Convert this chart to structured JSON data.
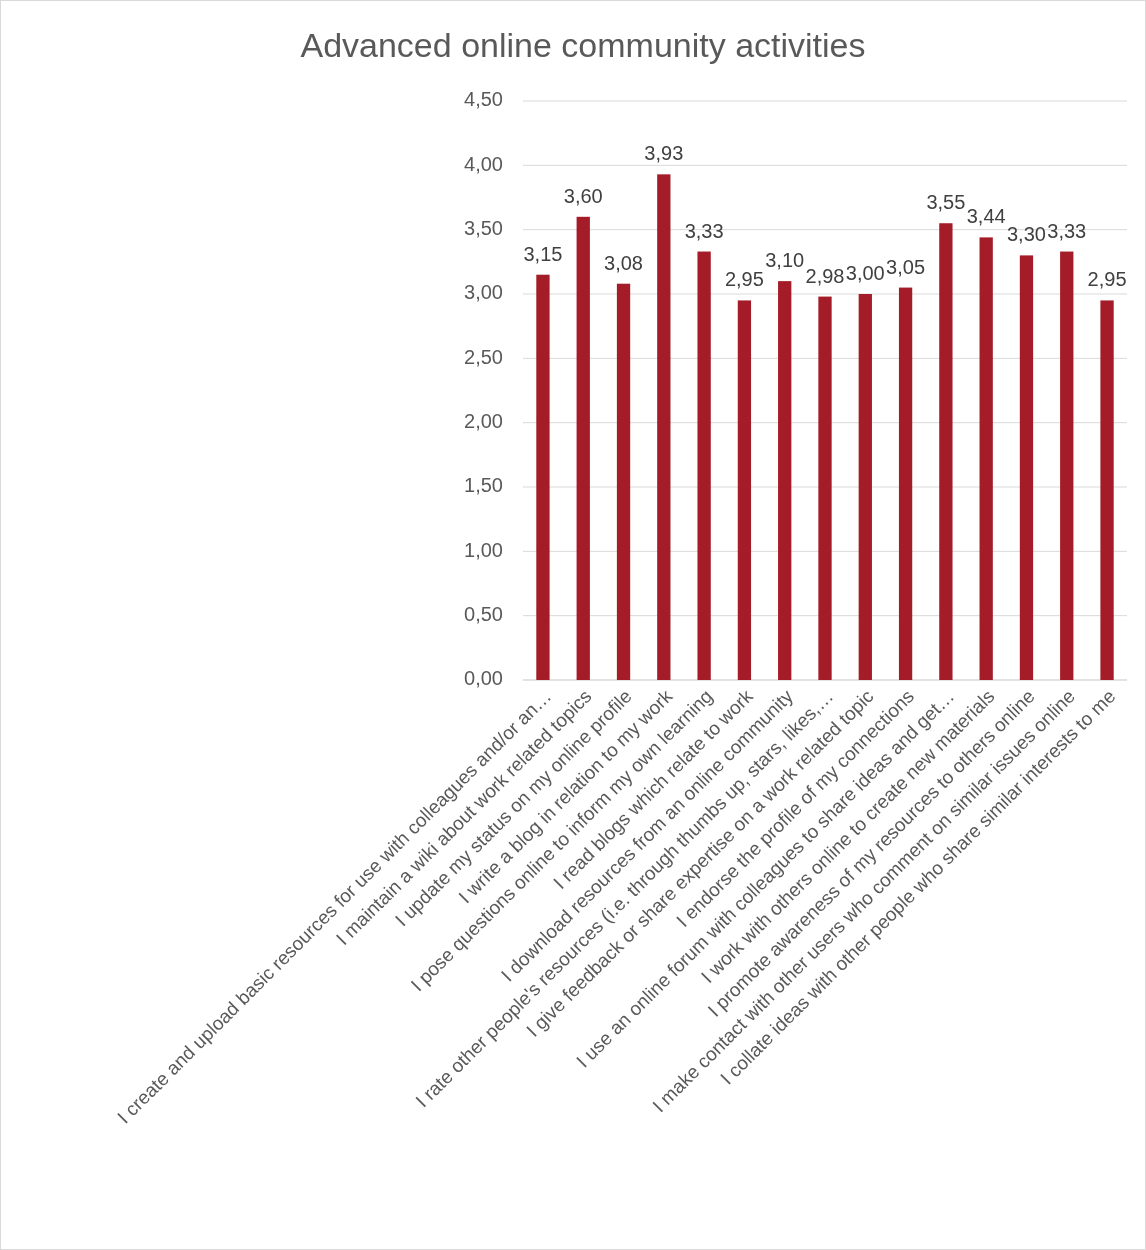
{
  "chart_data": {
    "type": "bar",
    "title": "Advanced online community activities",
    "categories": [
      "I create and upload basic resources for use with colleagues and/or an…",
      "I maintain a wiki about work related topics",
      "I update my status on my online profile",
      "I write a blog in relation to my work",
      "I pose questions online to inform my own learning",
      "I read blogs which relate to work",
      "I download resources from an online community",
      "I rate other people's resources (i.e. through thumbs up, stars, likes,…",
      "I give feedback or share expertise on a work related topic",
      "I endorse the profile of my connections",
      "I use an online forum with colleagues to share ideas and get…",
      "I work with others online to create new materials",
      "I promote awareness of my resources to others online",
      "I make contact with other users who comment on similar issues online",
      "I collate ideas with other people who share similar interests to me"
    ],
    "values": [
      3.15,
      3.6,
      3.08,
      3.93,
      3.33,
      2.95,
      3.1,
      2.98,
      3.0,
      3.05,
      3.55,
      3.44,
      3.3,
      3.33,
      2.95
    ],
    "value_labels": [
      "3,15",
      "3,60",
      "3,08",
      "3,93",
      "3,33",
      "2,95",
      "3,10",
      "2,98",
      "3,00",
      "3,05",
      "3,55",
      "3,44",
      "3,30",
      "3,33",
      "2,95"
    ],
    "color": "#a31c27",
    "ylim": [
      0,
      4.5
    ],
    "yticks": [
      {
        "value": 0,
        "label": "0,00"
      },
      {
        "value": 0.5,
        "label": "0,50"
      },
      {
        "value": 1,
        "label": "1,00"
      },
      {
        "value": 1.5,
        "label": "1,50"
      },
      {
        "value": 2,
        "label": "2,00"
      },
      {
        "value": 2.5,
        "label": "2,50"
      },
      {
        "value": 3,
        "label": "3,00"
      },
      {
        "value": 3.5,
        "label": "3,50"
      },
      {
        "value": 4,
        "label": "4,00"
      },
      {
        "value": 4.5,
        "label": "4,50"
      }
    ],
    "grid": "y"
  }
}
